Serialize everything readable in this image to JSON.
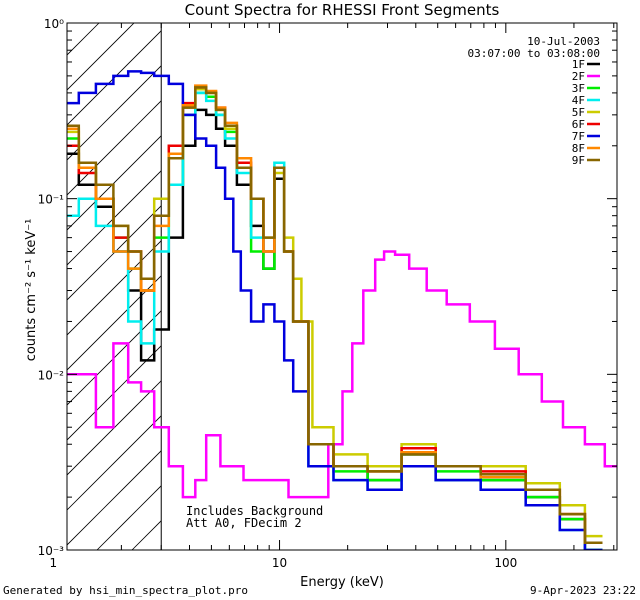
{
  "chart_data": {
    "type": "line",
    "title": "Count Spectra for RHESSI Front Segments",
    "xlabel": "Energy (keV)",
    "ylabel": "counts cm⁻² s⁻¹ keV⁻¹",
    "xscale": "log",
    "yscale": "log",
    "xlim": [
      1.15,
      310
    ],
    "ylim": [
      0.001,
      1
    ],
    "x_ticks": [
      {
        "v": 1,
        "label": "1"
      },
      {
        "v": 10,
        "label": "10"
      },
      {
        "v": 100,
        "label": "100"
      }
    ],
    "y_ticks": [
      {
        "v": 1,
        "label": "10⁰"
      },
      {
        "v": 0.1,
        "label": "10⁻¹"
      },
      {
        "v": 0.01,
        "label": "10⁻²"
      },
      {
        "v": 0.001,
        "label": "10⁻³"
      }
    ],
    "grid": false,
    "legend_position": "top-right",
    "date": "10-Jul-2003",
    "time_range": "03:07:00 to 03:08:00",
    "notes": [
      "Includes Background",
      "Att A0, FDecim 2"
    ],
    "attenuator_hatch_upper_keV": 3.0,
    "series": [
      {
        "name": "1F",
        "color": "#000000",
        "x": [
          1.2,
          1.4,
          1.7,
          2.0,
          2.3,
          2.6,
          3.0,
          3.5,
          4.0,
          4.5,
          5.0,
          5.5,
          6.0,
          7.0,
          8.0,
          9.0,
          10.0,
          11.0,
          12.0,
          15.0,
          20.0,
          30.0,
          40.0,
          60.0,
          100.0,
          150.0,
          200.0,
          250.0
        ],
        "y": [
          0.18,
          0.12,
          0.09,
          0.05,
          0.03,
          0.012,
          0.018,
          0.06,
          0.2,
          0.32,
          0.3,
          0.25,
          0.2,
          0.12,
          0.07,
          0.04,
          0.13,
          0.05,
          0.02,
          0.004,
          0.003,
          0.0025,
          0.0035,
          0.0025,
          0.0025,
          0.002,
          0.0015,
          0.001
        ]
      },
      {
        "name": "2F",
        "color": "#ff00ff",
        "x": [
          1.2,
          1.4,
          1.7,
          2.0,
          2.3,
          2.6,
          3.0,
          3.5,
          4.0,
          4.5,
          5.0,
          6.0,
          8.0,
          10.0,
          12.0,
          15.0,
          18.0,
          20.0,
          22.0,
          25.0,
          28.0,
          30.0,
          35.0,
          40.0,
          50.0,
          60.0,
          80.0,
          100.0,
          130.0,
          160.0,
          200.0,
          250.0,
          300.0
        ],
        "y": [
          0.01,
          0.01,
          0.005,
          0.015,
          0.009,
          0.008,
          0.005,
          0.003,
          0.002,
          0.0025,
          0.0045,
          0.003,
          0.0025,
          0.0025,
          0.002,
          0.002,
          0.004,
          0.008,
          0.015,
          0.03,
          0.045,
          0.05,
          0.048,
          0.04,
          0.03,
          0.025,
          0.02,
          0.014,
          0.01,
          0.007,
          0.005,
          0.004,
          0.003
        ]
      },
      {
        "name": "3F",
        "color": "#00ee00",
        "x": [
          1.2,
          1.4,
          1.7,
          2.0,
          2.3,
          2.6,
          3.0,
          3.5,
          4.0,
          4.5,
          5.0,
          5.5,
          6.0,
          7.0,
          8.0,
          9.0,
          10.0,
          11.0,
          12.0,
          15.0,
          20.0,
          30.0,
          40.0,
          60.0,
          100.0,
          150.0,
          200.0,
          250.0
        ],
        "y": [
          0.22,
          0.15,
          0.1,
          0.06,
          0.04,
          0.03,
          0.06,
          0.12,
          0.3,
          0.4,
          0.38,
          0.3,
          0.24,
          0.15,
          0.05,
          0.04,
          0.15,
          0.05,
          0.02,
          0.004,
          0.0028,
          0.0025,
          0.0035,
          0.0028,
          0.0025,
          0.002,
          0.0015,
          0.001
        ]
      },
      {
        "name": "4F",
        "color": "#00eeee",
        "x": [
          1.2,
          1.4,
          1.7,
          2.0,
          2.3,
          2.6,
          3.0,
          3.5,
          4.0,
          4.5,
          5.0,
          5.5,
          6.0,
          7.0,
          8.0,
          9.0,
          10.0,
          11.0,
          12.0,
          15.0,
          20.0,
          30.0,
          40.0,
          60.0,
          100.0,
          150.0,
          200.0,
          250.0
        ],
        "y": [
          0.08,
          0.1,
          0.07,
          0.05,
          0.02,
          0.015,
          0.05,
          0.12,
          0.3,
          0.4,
          0.36,
          0.3,
          0.22,
          0.14,
          0.06,
          0.05,
          0.16,
          0.05,
          0.02,
          0.003,
          0.0025,
          0.0022,
          0.003,
          0.0025,
          0.0022,
          0.0018,
          0.0013,
          0.001
        ]
      },
      {
        "name": "5F",
        "color": "#cccc00",
        "x": [
          1.2,
          1.4,
          1.7,
          2.0,
          2.3,
          2.6,
          3.0,
          3.5,
          4.0,
          4.5,
          5.0,
          5.5,
          6.0,
          7.0,
          8.0,
          9.0,
          10.0,
          11.0,
          12.0,
          13.0,
          15.0,
          20.0,
          30.0,
          40.0,
          60.0,
          100.0,
          150.0,
          200.0,
          250.0
        ],
        "y": [
          0.24,
          0.15,
          0.1,
          0.07,
          0.05,
          0.03,
          0.1,
          0.18,
          0.33,
          0.42,
          0.4,
          0.32,
          0.25,
          0.15,
          0.1,
          0.06,
          0.14,
          0.06,
          0.035,
          0.02,
          0.005,
          0.0035,
          0.003,
          0.004,
          0.003,
          0.003,
          0.0024,
          0.0018,
          0.0012
        ]
      },
      {
        "name": "6F",
        "color": "#ee0000",
        "x": [
          1.2,
          1.4,
          1.7,
          2.0,
          2.3,
          2.6,
          3.0,
          3.5,
          4.0,
          4.5,
          5.0,
          5.5,
          6.0,
          7.0,
          8.0,
          9.0,
          10.0,
          11.0,
          12.0,
          15.0,
          20.0,
          30.0,
          40.0,
          60.0,
          100.0,
          150.0,
          200.0,
          250.0
        ],
        "y": [
          0.2,
          0.14,
          0.1,
          0.06,
          0.05,
          0.03,
          0.08,
          0.2,
          0.35,
          0.43,
          0.4,
          0.33,
          0.26,
          0.16,
          0.1,
          0.05,
          0.15,
          0.05,
          0.02,
          0.004,
          0.003,
          0.0028,
          0.0038,
          0.003,
          0.0028,
          0.0022,
          0.0016,
          0.0011
        ]
      },
      {
        "name": "7F",
        "color": "#0000dd",
        "x": [
          1.2,
          1.4,
          1.7,
          2.0,
          2.3,
          2.6,
          3.0,
          3.5,
          4.0,
          4.5,
          5.0,
          5.5,
          6.0,
          6.5,
          7.0,
          8.0,
          9.0,
          10.0,
          11.0,
          12.0,
          15.0,
          20.0,
          30.0,
          40.0,
          60.0,
          100.0,
          150.0,
          200.0,
          250.0
        ],
        "y": [
          0.35,
          0.4,
          0.45,
          0.5,
          0.53,
          0.52,
          0.5,
          0.45,
          0.3,
          0.22,
          0.2,
          0.15,
          0.1,
          0.05,
          0.03,
          0.02,
          0.025,
          0.02,
          0.012,
          0.008,
          0.003,
          0.0025,
          0.0022,
          0.003,
          0.0025,
          0.0022,
          0.0018,
          0.0013,
          0.001
        ]
      },
      {
        "name": "8F",
        "color": "#ff8800",
        "x": [
          1.2,
          1.4,
          1.7,
          2.0,
          2.3,
          2.6,
          3.0,
          3.5,
          4.0,
          4.5,
          5.0,
          5.5,
          6.0,
          7.0,
          8.0,
          9.0,
          10.0,
          11.0,
          12.0,
          15.0,
          20.0,
          30.0,
          40.0,
          60.0,
          100.0,
          150.0,
          200.0,
          250.0
        ],
        "y": [
          0.25,
          0.15,
          0.1,
          0.05,
          0.04,
          0.03,
          0.07,
          0.18,
          0.34,
          0.44,
          0.41,
          0.33,
          0.27,
          0.17,
          0.1,
          0.05,
          0.15,
          0.05,
          0.02,
          0.004,
          0.003,
          0.0028,
          0.0036,
          0.003,
          0.0026,
          0.0022,
          0.0016,
          0.0011
        ]
      },
      {
        "name": "9F",
        "color": "#886600",
        "x": [
          1.2,
          1.4,
          1.7,
          2.0,
          2.3,
          2.6,
          3.0,
          3.5,
          4.0,
          4.5,
          5.0,
          5.5,
          6.0,
          7.0,
          8.0,
          9.0,
          10.0,
          11.0,
          12.0,
          15.0,
          20.0,
          30.0,
          40.0,
          60.0,
          100.0,
          150.0,
          200.0,
          250.0
        ],
        "y": [
          0.26,
          0.16,
          0.12,
          0.07,
          0.05,
          0.035,
          0.08,
          0.17,
          0.33,
          0.43,
          0.4,
          0.32,
          0.26,
          0.15,
          0.1,
          0.06,
          0.15,
          0.05,
          0.02,
          0.004,
          0.003,
          0.0028,
          0.0035,
          0.003,
          0.0027,
          0.0022,
          0.0016,
          0.0011
        ]
      }
    ]
  },
  "footer": {
    "generated_by": "Generated by hsi_min_spectra_plot.pro",
    "timestamp": "9-Apr-2023 23:22"
  }
}
